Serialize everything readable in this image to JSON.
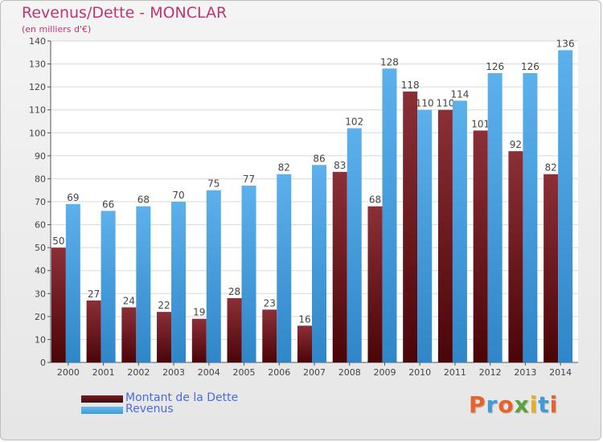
{
  "title": "Revenus/Dette - MONCLAR",
  "subtitle": "(en milliers d'€)",
  "logo_text": "Proxiti",
  "colors": {
    "dette": "#7a1e24",
    "revenus": "#3e9ad8",
    "title": "#c0356e",
    "legend_text": "#4a69e8"
  },
  "chart_data": {
    "type": "bar",
    "categories": [
      "2000",
      "2001",
      "2002",
      "2003",
      "2004",
      "2005",
      "2006",
      "2007",
      "2008",
      "2009",
      "2010",
      "2011",
      "2012",
      "2013",
      "2014"
    ],
    "series": [
      {
        "name": "Montant de la Dette",
        "values": [
          50,
          27,
          24,
          22,
          19,
          28,
          23,
          16,
          83,
          68,
          118,
          110,
          101,
          92,
          82
        ]
      },
      {
        "name": "Revenus",
        "values": [
          69,
          66,
          68,
          70,
          75,
          77,
          82,
          86,
          102,
          128,
          110,
          114,
          126,
          126,
          136
        ]
      }
    ],
    "ylim": [
      0,
      140
    ],
    "yticks": [
      0,
      10,
      20,
      30,
      40,
      50,
      60,
      70,
      80,
      90,
      100,
      110,
      120,
      130,
      140
    ],
    "grid": true,
    "legend": "bottom-left"
  }
}
